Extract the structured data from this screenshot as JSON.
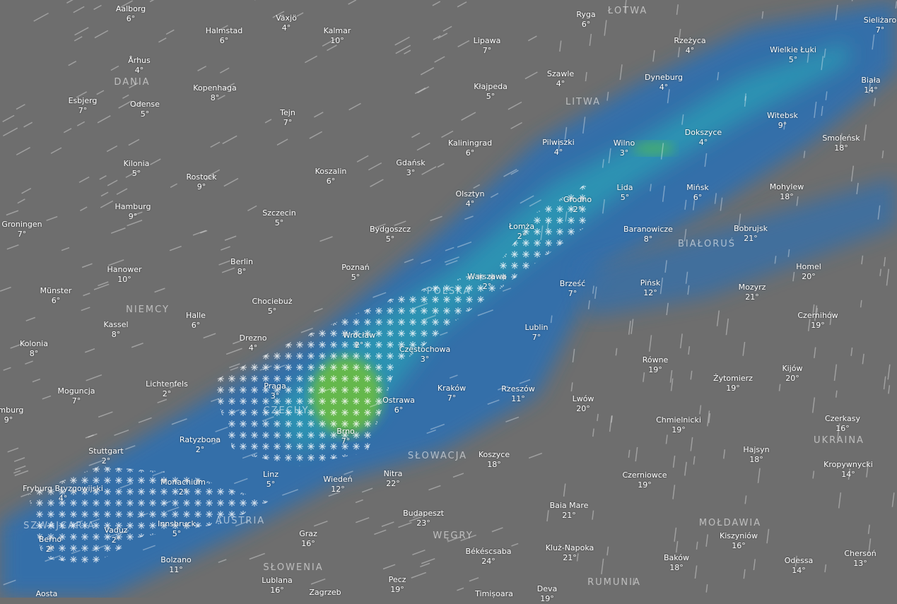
{
  "map": {
    "layer": "precipitation",
    "colors": {
      "land": "#6e6e6e",
      "rain_light": "#2f6fb0",
      "rain_mid": "#2a9bb5",
      "rain_heavy": "#6fbf3a",
      "snow": "#ffffff"
    }
  },
  "cities": [
    {
      "name": "Aalborg",
      "temp": "6°"
    },
    {
      "name": "Växjö",
      "temp": "4°"
    },
    {
      "name": "Halmstad",
      "temp": "6°"
    },
    {
      "name": "Kalmar",
      "temp": "10°"
    },
    {
      "name": "Ryga",
      "temp": "6°"
    },
    {
      "name": "Lipawa",
      "temp": "7°"
    },
    {
      "name": "Rzeżyca",
      "temp": "4°"
    },
    {
      "name": "Sieliżaro",
      "temp": "7°"
    },
    {
      "name": "Wielkie Łuki",
      "temp": "5°"
    },
    {
      "name": "Århus",
      "temp": "4°"
    },
    {
      "name": "Szawle",
      "temp": "4°"
    },
    {
      "name": "Dyneburg",
      "temp": "4°"
    },
    {
      "name": "Biała",
      "temp": "14°"
    },
    {
      "name": "Esbjerg",
      "temp": "7°"
    },
    {
      "name": "Odense",
      "temp": "5°"
    },
    {
      "name": "Kopenhaga",
      "temp": "8°"
    },
    {
      "name": "Kłajpeda",
      "temp": "5°"
    },
    {
      "name": "Tejn",
      "temp": "7°"
    },
    {
      "name": "Witebsk",
      "temp": "9°"
    },
    {
      "name": "Dokszyce",
      "temp": "4°"
    },
    {
      "name": "Smoleńsk",
      "temp": "18°"
    },
    {
      "name": "Kaliningrad",
      "temp": "6°"
    },
    {
      "name": "Pilwiszki",
      "temp": "4°"
    },
    {
      "name": "Wilno",
      "temp": "3°"
    },
    {
      "name": "Kilonia",
      "temp": "5°"
    },
    {
      "name": "Gdańsk",
      "temp": "3°"
    },
    {
      "name": "Koszalin",
      "temp": "6°"
    },
    {
      "name": "Rostock",
      "temp": "9°"
    },
    {
      "name": "Olsztyn",
      "temp": "4°"
    },
    {
      "name": "Grodno",
      "temp": "2°"
    },
    {
      "name": "Lida",
      "temp": "5°"
    },
    {
      "name": "Mińsk",
      "temp": "6°"
    },
    {
      "name": "Mohylew",
      "temp": "18°"
    },
    {
      "name": "Hamburg",
      "temp": "9°"
    },
    {
      "name": "Szczecin",
      "temp": "5°"
    },
    {
      "name": "Groningen",
      "temp": "7°"
    },
    {
      "name": "Bydgoszcz",
      "temp": "5°"
    },
    {
      "name": "Łomża",
      "temp": "2°"
    },
    {
      "name": "Baranowicze",
      "temp": "8°"
    },
    {
      "name": "Bobrujsk",
      "temp": "21°"
    },
    {
      "name": "Berlin",
      "temp": "8°"
    },
    {
      "name": "Hanower",
      "temp": "10°"
    },
    {
      "name": "Poznań",
      "temp": "5°"
    },
    {
      "name": "Warszawa",
      "temp": "2°"
    },
    {
      "name": "Homel",
      "temp": "20°"
    },
    {
      "name": "Münster",
      "temp": "6°"
    },
    {
      "name": "Brześć",
      "temp": "7°"
    },
    {
      "name": "Pińsk",
      "temp": "12°"
    },
    {
      "name": "Mozyrz",
      "temp": "21°"
    },
    {
      "name": "Chociebuż",
      "temp": "5°"
    },
    {
      "name": "Halle",
      "temp": "6°"
    },
    {
      "name": "Kassel",
      "temp": "8°"
    },
    {
      "name": "Czernihów",
      "temp": "19°"
    },
    {
      "name": "Drezno",
      "temp": "4°"
    },
    {
      "name": "Wrocław",
      "temp": "2°"
    },
    {
      "name": "Lublin",
      "temp": "7°"
    },
    {
      "name": "Częstochowa",
      "temp": "3°"
    },
    {
      "name": "Kolonia",
      "temp": "8°"
    },
    {
      "name": "Równe",
      "temp": "19°"
    },
    {
      "name": "Żytomierz",
      "temp": "19°"
    },
    {
      "name": "Kijów",
      "temp": "20°"
    },
    {
      "name": "Lichtenfels",
      "temp": "2°"
    },
    {
      "name": "Praga",
      "temp": "3°"
    },
    {
      "name": "Kraków",
      "temp": "7°"
    },
    {
      "name": "Rzeszów",
      "temp": "11°"
    },
    {
      "name": "Moguncja",
      "temp": "7°"
    },
    {
      "name": "Ostrawa",
      "temp": "6°"
    },
    {
      "name": "Lwów",
      "temp": "20°"
    },
    {
      "name": "emburg",
      "temp": "9°"
    },
    {
      "name": "Chmielnicki",
      "temp": "19°"
    },
    {
      "name": "Czerkasy",
      "temp": "16°"
    },
    {
      "name": "Ratyzbona",
      "temp": "2°"
    },
    {
      "name": "Stuttgart",
      "temp": "2°"
    },
    {
      "name": "Brno",
      "temp": "7°"
    },
    {
      "name": "Koszyce",
      "temp": "18°"
    },
    {
      "name": "Hajsyn",
      "temp": "18°"
    },
    {
      "name": "Kropywnycki",
      "temp": "14°"
    },
    {
      "name": "Nitra",
      "temp": "22°"
    },
    {
      "name": "Linz",
      "temp": "5°"
    },
    {
      "name": "Monachium",
      "temp": "2°"
    },
    {
      "name": "Wiedeń",
      "temp": "12°"
    },
    {
      "name": "Czerniowce",
      "temp": "19°"
    },
    {
      "name": "Fryburg Bryzgowijski",
      "temp": "4°"
    },
    {
      "name": "Baia Mare",
      "temp": "21°"
    },
    {
      "name": "Budapeszt",
      "temp": "23°"
    },
    {
      "name": "Innsbruck",
      "temp": "5°"
    },
    {
      "name": "Vaduz",
      "temp": "2°"
    },
    {
      "name": "Graz",
      "temp": "16°"
    },
    {
      "name": "Kiszyniów",
      "temp": "16°"
    },
    {
      "name": "Berno",
      "temp": "2°"
    },
    {
      "name": "Békéscsaba",
      "temp": "24°"
    },
    {
      "name": "Kluż-Napoka",
      "temp": "21°"
    },
    {
      "name": "Baków",
      "temp": "18°"
    },
    {
      "name": "Odessa",
      "temp": "14°"
    },
    {
      "name": "Chersoń",
      "temp": "13°"
    },
    {
      "name": "Bolzano",
      "temp": "11°"
    },
    {
      "name": "Lublana",
      "temp": "16°"
    },
    {
      "name": "Pecz",
      "temp": "19°"
    },
    {
      "name": "Deva",
      "temp": "19°"
    },
    {
      "name": "Aosta",
      "temp": ""
    },
    {
      "name": "Zagrzeb",
      "temp": ""
    },
    {
      "name": "Timișoara",
      "temp": ""
    }
  ],
  "countries": [
    "ŁOTWA",
    "DANIA",
    "LITWA",
    "BIAŁORUŚ",
    "POLSKA",
    "NIEMCY",
    "CZECHY",
    "SŁOWACJA",
    "UKRAINA",
    "AUSTRIA",
    "SZWAJCARIA",
    "MOŁDAWIA",
    "WĘGRY",
    "SŁOWENIA",
    "RUMUNIA"
  ]
}
